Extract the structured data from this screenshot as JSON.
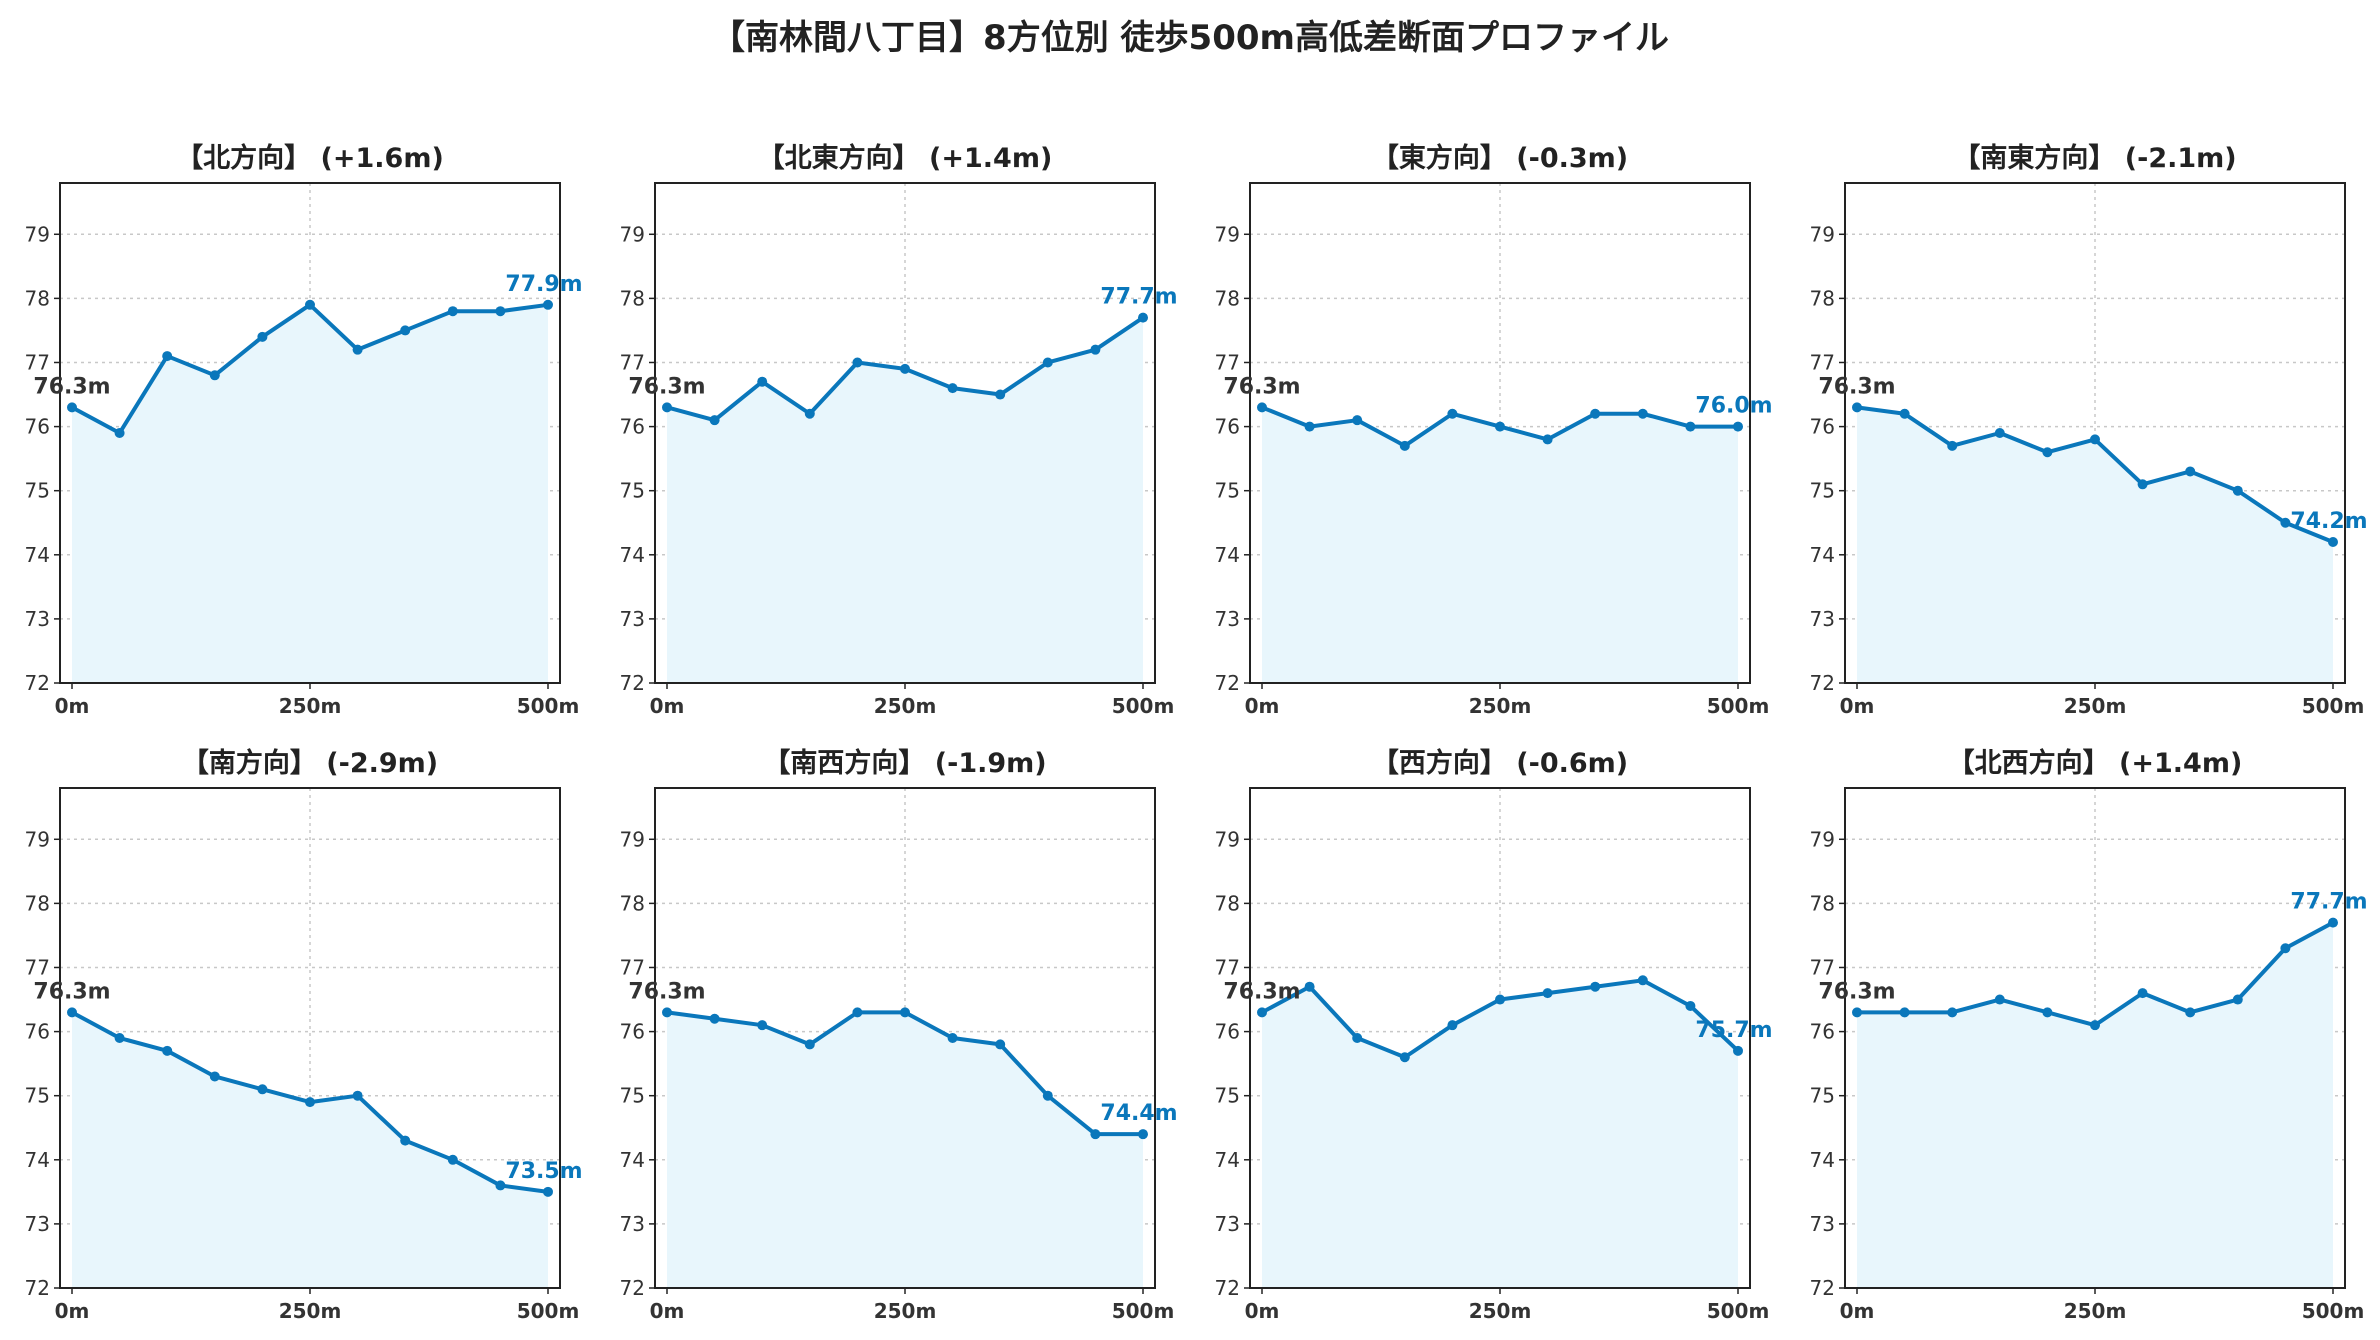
{
  "title": "【南林間八丁目】8方位別 徒歩500m高低差断面プロファイル",
  "colors": {
    "line": "#0a77bb",
    "fill": "#e8f6fc",
    "grid": "#c8c8c8",
    "axis": "#222222",
    "start_label": "#333333",
    "end_label": "#0a77bb"
  },
  "chart_data": [
    {
      "type": "area",
      "title": "【北方向】 (+1.6m)",
      "xlabel": "",
      "ylabel": "",
      "x": [
        0,
        50,
        100,
        150,
        200,
        250,
        300,
        350,
        400,
        450,
        500
      ],
      "values": [
        76.3,
        75.9,
        77.1,
        76.8,
        77.4,
        77.9,
        77.2,
        77.5,
        77.8,
        77.8,
        77.9
      ],
      "start_label": "76.3m",
      "end_label": "77.9m",
      "ylim": [
        72,
        79.8
      ],
      "xlim": [
        0,
        500
      ],
      "yticks": [
        "72",
        "73",
        "74",
        "75",
        "76",
        "77",
        "78",
        "79"
      ],
      "xticks": [
        "0m",
        "250m",
        "500m"
      ],
      "grid": true
    },
    {
      "type": "area",
      "title": "【北東方向】 (+1.4m)",
      "xlabel": "",
      "ylabel": "",
      "x": [
        0,
        50,
        100,
        150,
        200,
        250,
        300,
        350,
        400,
        450,
        500
      ],
      "values": [
        76.3,
        76.1,
        76.7,
        76.2,
        77.0,
        76.9,
        76.6,
        76.5,
        77.0,
        77.2,
        77.7
      ],
      "start_label": "76.3m",
      "end_label": "77.7m",
      "ylim": [
        72,
        79.8
      ],
      "xlim": [
        0,
        500
      ],
      "yticks": [
        "72",
        "73",
        "74",
        "75",
        "76",
        "77",
        "78",
        "79"
      ],
      "xticks": [
        "0m",
        "250m",
        "500m"
      ],
      "grid": true
    },
    {
      "type": "area",
      "title": "【東方向】 (-0.3m)",
      "xlabel": "",
      "ylabel": "",
      "x": [
        0,
        50,
        100,
        150,
        200,
        250,
        300,
        350,
        400,
        450,
        500
      ],
      "values": [
        76.3,
        76.0,
        76.1,
        75.7,
        76.2,
        76.0,
        75.8,
        76.2,
        76.2,
        76.0,
        76.0
      ],
      "start_label": "76.3m",
      "end_label": "76.0m",
      "ylim": [
        72,
        79.8
      ],
      "xlim": [
        0,
        500
      ],
      "yticks": [
        "72",
        "73",
        "74",
        "75",
        "76",
        "77",
        "78",
        "79"
      ],
      "xticks": [
        "0m",
        "250m",
        "500m"
      ],
      "grid": true
    },
    {
      "type": "area",
      "title": "【南東方向】 (-2.1m)",
      "xlabel": "",
      "ylabel": "",
      "x": [
        0,
        50,
        100,
        150,
        200,
        250,
        300,
        350,
        400,
        450,
        500
      ],
      "values": [
        76.3,
        76.2,
        75.7,
        75.9,
        75.6,
        75.8,
        75.1,
        75.3,
        75.0,
        74.5,
        74.2
      ],
      "start_label": "76.3m",
      "end_label": "74.2m",
      "ylim": [
        72,
        79.8
      ],
      "xlim": [
        0,
        500
      ],
      "yticks": [
        "72",
        "73",
        "74",
        "75",
        "76",
        "77",
        "78",
        "79"
      ],
      "xticks": [
        "0m",
        "250m",
        "500m"
      ],
      "grid": true
    },
    {
      "type": "area",
      "title": "【南方向】 (-2.9m)",
      "xlabel": "",
      "ylabel": "",
      "x": [
        0,
        50,
        100,
        150,
        200,
        250,
        300,
        350,
        400,
        450,
        500
      ],
      "values": [
        76.3,
        75.9,
        75.7,
        75.3,
        75.1,
        74.9,
        75.0,
        74.3,
        74.0,
        73.6,
        73.5
      ],
      "start_label": "76.3m",
      "end_label": "73.5m",
      "ylim": [
        72,
        79.8
      ],
      "xlim": [
        0,
        500
      ],
      "yticks": [
        "72",
        "73",
        "74",
        "75",
        "76",
        "77",
        "78",
        "79"
      ],
      "xticks": [
        "0m",
        "250m",
        "500m"
      ],
      "grid": true
    },
    {
      "type": "area",
      "title": "【南西方向】 (-1.9m)",
      "xlabel": "",
      "ylabel": "",
      "x": [
        0,
        50,
        100,
        150,
        200,
        250,
        300,
        350,
        400,
        450,
        500
      ],
      "values": [
        76.3,
        76.2,
        76.1,
        75.8,
        76.3,
        76.3,
        75.9,
        75.8,
        75.0,
        74.4,
        74.4
      ],
      "start_label": "76.3m",
      "end_label": "74.4m",
      "ylim": [
        72,
        79.8
      ],
      "xlim": [
        0,
        500
      ],
      "yticks": [
        "72",
        "73",
        "74",
        "75",
        "76",
        "77",
        "78",
        "79"
      ],
      "xticks": [
        "0m",
        "250m",
        "500m"
      ],
      "grid": true
    },
    {
      "type": "area",
      "title": "【西方向】 (-0.6m)",
      "xlabel": "",
      "ylabel": "",
      "x": [
        0,
        50,
        100,
        150,
        200,
        250,
        300,
        350,
        400,
        450,
        500
      ],
      "values": [
        76.3,
        76.7,
        75.9,
        75.6,
        76.1,
        76.5,
        76.6,
        76.7,
        76.8,
        76.4,
        75.7
      ],
      "start_label": "76.3m",
      "end_label": "75.7m",
      "ylim": [
        72,
        79.8
      ],
      "xlim": [
        0,
        500
      ],
      "yticks": [
        "72",
        "73",
        "74",
        "75",
        "76",
        "77",
        "78",
        "79"
      ],
      "xticks": [
        "0m",
        "250m",
        "500m"
      ],
      "grid": true
    },
    {
      "type": "area",
      "title": "【北西方向】 (+1.4m)",
      "xlabel": "",
      "ylabel": "",
      "x": [
        0,
        50,
        100,
        150,
        200,
        250,
        300,
        350,
        400,
        450,
        500
      ],
      "values": [
        76.3,
        76.3,
        76.3,
        76.5,
        76.3,
        76.1,
        76.6,
        76.3,
        76.5,
        77.3,
        77.7
      ],
      "start_label": "76.3m",
      "end_label": "77.7m",
      "ylim": [
        72,
        79.8
      ],
      "xlim": [
        0,
        500
      ],
      "yticks": [
        "72",
        "73",
        "74",
        "75",
        "76",
        "77",
        "78",
        "79"
      ],
      "xticks": [
        "0m",
        "250m",
        "500m"
      ],
      "grid": true
    }
  ]
}
